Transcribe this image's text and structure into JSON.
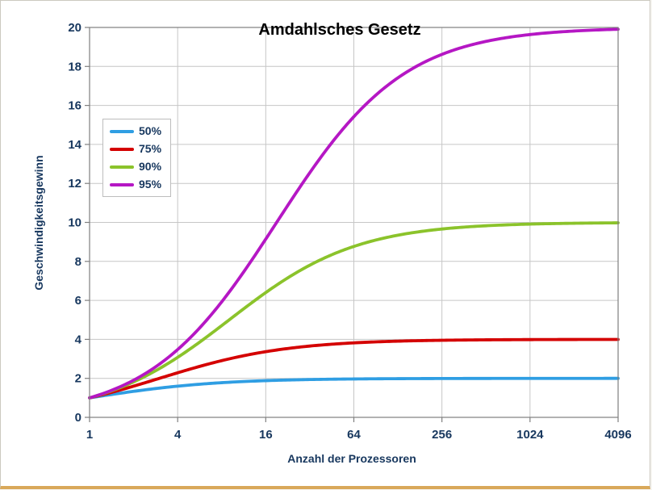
{
  "chart_data": {
    "type": "line",
    "title": "Amdahlsches Gesetz",
    "xlabel": "Anzahl der Prozessoren",
    "ylabel": "Geschwindigkeitsgewinn",
    "x_scale": "log2",
    "x": [
      1,
      2,
      4,
      8,
      16,
      32,
      64,
      128,
      256,
      512,
      1024,
      2048,
      4096
    ],
    "x_ticks": [
      1,
      4,
      16,
      64,
      256,
      1024,
      4096
    ],
    "x_tick_labels": [
      "1",
      "4",
      "16",
      "64",
      "256",
      "1024",
      "4096"
    ],
    "y_ticks": [
      0,
      2,
      4,
      6,
      8,
      10,
      12,
      14,
      16,
      18,
      20
    ],
    "ylim": [
      0,
      20
    ],
    "xlim_log2": [
      0,
      12
    ],
    "grid": true,
    "legend_position": "inside-upper-left",
    "series": [
      {
        "name": "50%",
        "parallel_fraction": 0.5,
        "color": "#2f9ee3",
        "values": [
          1.0,
          1.33,
          1.6,
          1.78,
          1.88,
          1.94,
          1.97,
          1.98,
          1.99,
          2.0,
          2.0,
          2.0,
          2.0
        ]
      },
      {
        "name": "75%",
        "parallel_fraction": 0.75,
        "color": "#d40000",
        "values": [
          1.0,
          1.6,
          2.29,
          2.91,
          3.37,
          3.66,
          3.82,
          3.91,
          3.95,
          3.98,
          3.99,
          3.99,
          4.0
        ]
      },
      {
        "name": "90%",
        "parallel_fraction": 0.9,
        "color": "#8bc32b",
        "values": [
          1.0,
          1.82,
          3.08,
          4.71,
          6.4,
          7.8,
          8.77,
          9.34,
          9.66,
          9.83,
          9.91,
          9.96,
          9.98
        ]
      },
      {
        "name": "95%",
        "parallel_fraction": 0.95,
        "color": "#b517c4",
        "values": [
          1.0,
          1.9,
          3.48,
          5.93,
          9.14,
          12.55,
          15.42,
          17.41,
          18.62,
          19.28,
          19.64,
          19.83,
          19.91
        ]
      }
    ]
  },
  "colors": {
    "axis_text": "#17375e",
    "title_text": "#000000",
    "gridline": "#c6c6c6",
    "frame": "#7f7f7f",
    "plot_background": "#ffffff"
  }
}
